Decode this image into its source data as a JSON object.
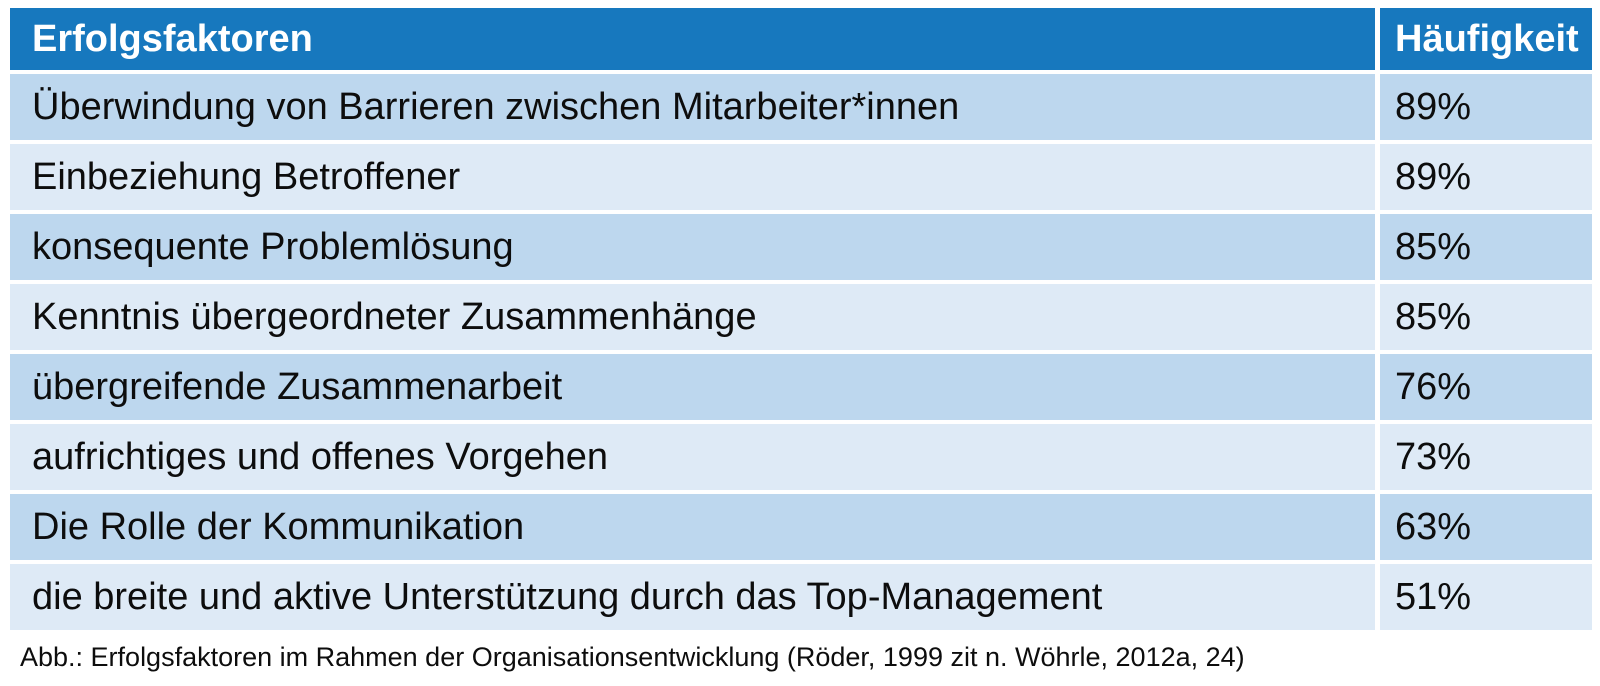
{
  "chart_data": {
    "type": "table",
    "title": "Erfolgsfaktoren",
    "columns": [
      "Erfolgsfaktoren",
      "Häufigkeit"
    ],
    "categories": [
      "Überwindung von Barrieren zwischen Mitarbeiter*innen",
      "Einbeziehung Betroffener",
      "konsequente Problemlösung",
      "Kenntnis übergeordneter Zusammenhänge",
      "übergreifende Zusammenarbeit",
      "aufrichtiges und offenes Vorgehen",
      "Die Rolle der Kommunikation",
      "die breite und aktive Unterstützung durch das Top-Management"
    ],
    "values": [
      89,
      89,
      85,
      85,
      76,
      73,
      63,
      51
    ],
    "value_unit": "percent",
    "caption": "Abb.: Erfolgsfaktoren im Rahmen der Organisationsentwicklung (Röder, 1999 zit n. Wöhrle, 2012a, 24)"
  },
  "table": {
    "header": {
      "factor": "Erfolgsfaktoren",
      "frequency": "Häufigkeit"
    },
    "rows": [
      {
        "factor": "Überwindung von Barrieren zwischen Mitarbeiter*innen",
        "frequency": "89%"
      },
      {
        "factor": "Einbeziehung Betroffener",
        "frequency": "89%"
      },
      {
        "factor": "konsequente Problemlösung",
        "frequency": "85%"
      },
      {
        "factor": "Kenntnis übergeordneter Zusammenhänge",
        "frequency": "85%"
      },
      {
        "factor": "übergreifende Zusammenarbeit",
        "frequency": "76%"
      },
      {
        "factor": "aufrichtiges und offenes Vorgehen",
        "frequency": "73%"
      },
      {
        "factor": "Die Rolle der Kommunikation",
        "frequency": "63%"
      },
      {
        "factor": "die breite und aktive Unterstützung durch das Top-Management",
        "frequency": "51%"
      }
    ]
  },
  "caption": "Abb.: Erfolgsfaktoren im Rahmen der Organisationsentwicklung (Röder, 1999 zit n. Wöhrle, 2012a, 24)",
  "colors": {
    "header_bg": "#1778BE",
    "row_odd_bg": "#BDD7EE",
    "row_even_bg": "#DEEAF6",
    "header_text": "#FFFFFF",
    "body_text": "#0D0D0D",
    "page_bg": "#FFFFFF"
  }
}
